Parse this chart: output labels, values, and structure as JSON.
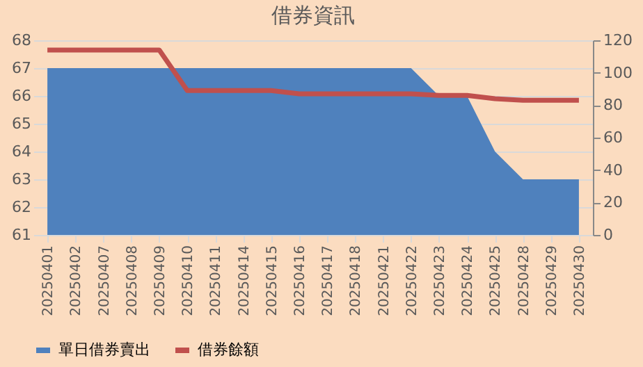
{
  "chart_data": {
    "type": "area",
    "title": "借券資訊",
    "categories": [
      "20250401",
      "20250402",
      "20250407",
      "20250408",
      "20250409",
      "20250410",
      "20250411",
      "20250414",
      "20250415",
      "20250416",
      "20250417",
      "20250418",
      "20250421",
      "20250422",
      "20250423",
      "20250424",
      "20250425",
      "20250428",
      "20250429",
      "20250430"
    ],
    "series": [
      {
        "name": "單日借券賣出",
        "color": "#4f81bd",
        "values": [
          67,
          67,
          67,
          67,
          67,
          67,
          67,
          67,
          67,
          67,
          67,
          67,
          67,
          67,
          66,
          66,
          64,
          63,
          63,
          63
        ]
      },
      {
        "name": "借券餘額",
        "type": "line",
        "axis": "y2",
        "color": "#c0504d",
        "values": [
          114,
          114,
          114,
          114,
          114,
          89,
          89,
          89,
          89,
          87,
          87,
          87,
          87,
          87,
          86,
          86,
          84,
          83,
          83,
          83
        ]
      }
    ],
    "ylim": [
      61,
      68
    ],
    "yticks": [
      61,
      62,
      63,
      64,
      65,
      66,
      67,
      68
    ],
    "y2lim": [
      0,
      120
    ],
    "y2ticks": [
      0,
      20,
      40,
      60,
      80,
      100,
      120
    ],
    "grid": "y",
    "legend": "bottom"
  }
}
